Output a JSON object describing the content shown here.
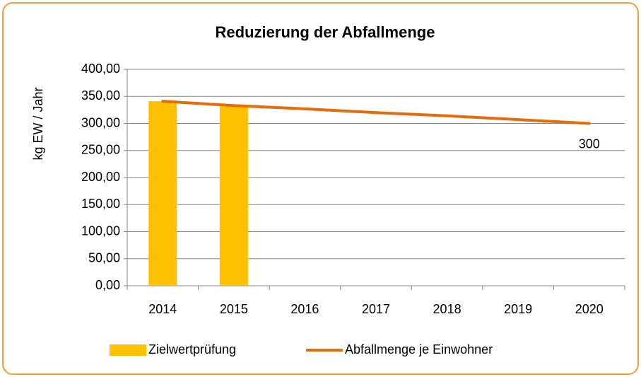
{
  "chart_data": {
    "type": "bar_line",
    "title": "Reduzierung der Abfallmenge",
    "y_axis_label": "kg EW / Jahr",
    "categories": [
      "2014",
      "2015",
      "2016",
      "2017",
      "2018",
      "2019",
      "2020"
    ],
    "series": [
      {
        "name": "Zielwertprüfung",
        "type": "bar",
        "color": "#FFC000",
        "values": [
          341,
          333,
          null,
          null,
          null,
          null,
          null
        ]
      },
      {
        "name": "Abfallmenge je Einwohner",
        "type": "line",
        "color": "#E46C0A",
        "values": [
          341,
          333,
          327,
          320,
          314,
          307,
          300
        ],
        "value_labels": [
          null,
          null,
          null,
          null,
          null,
          null,
          "300"
        ]
      }
    ],
    "ylim": [
      0,
      400
    ],
    "yticks": [
      {
        "value": 0,
        "label": "0,00"
      },
      {
        "value": 50,
        "label": "50,00"
      },
      {
        "value": 100,
        "label": "100,00"
      },
      {
        "value": 150,
        "label": "150,00"
      },
      {
        "value": 200,
        "label": "200,00"
      },
      {
        "value": 250,
        "label": "250,00"
      },
      {
        "value": 300,
        "label": "300,00"
      },
      {
        "value": 350,
        "label": "350,00"
      },
      {
        "value": 400,
        "label": "400,00"
      }
    ],
    "grid": true,
    "legend": "bottom"
  }
}
